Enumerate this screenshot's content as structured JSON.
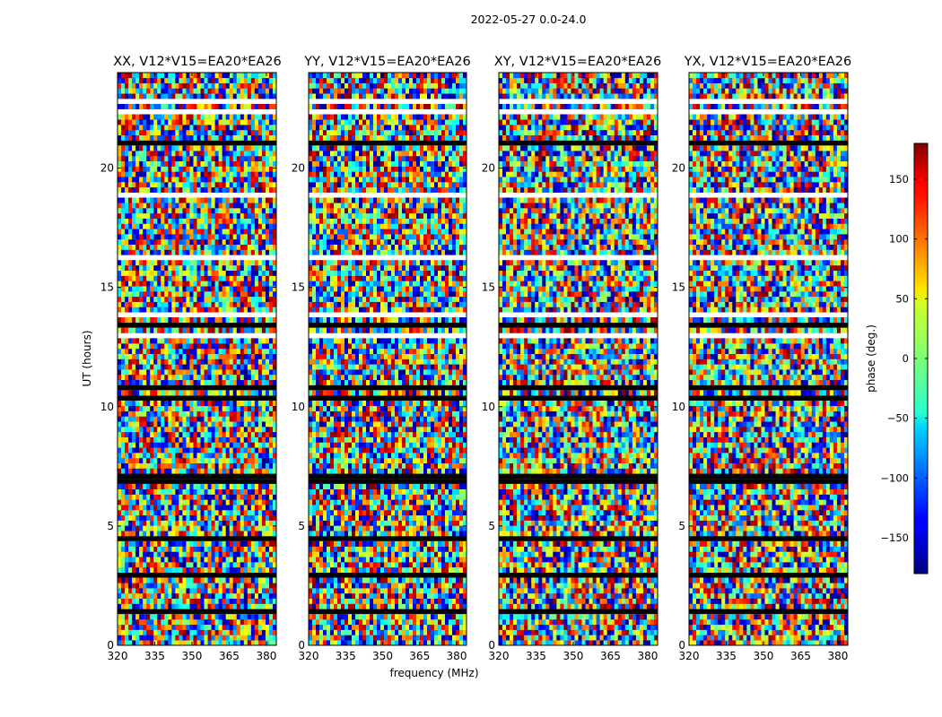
{
  "chart_data": {
    "type": "heatmap",
    "title": "2022-05-27 0.0-24.0",
    "xlabel": "frequency (MHz)",
    "ylabel": "UT (hours)",
    "xlim": [
      320,
      384
    ],
    "ylim": [
      0,
      24
    ],
    "xticks": [
      "320",
      "335",
      "350",
      "365",
      "380"
    ],
    "yticks": [
      "0",
      "5",
      "10",
      "15",
      "20"
    ],
    "panels": [
      {
        "title": "XX, V12*V15=EA20*EA26"
      },
      {
        "title": "YY, V12*V15=EA20*EA26"
      },
      {
        "title": "XY, V12*V15=EA20*EA26"
      },
      {
        "title": "YX, V12*V15=EA20*EA26"
      }
    ],
    "colorbar": {
      "label": "phase (deg.)",
      "range": [
        -180,
        180
      ],
      "ticks": [
        "150",
        "100",
        "50",
        "0",
        "−50",
        "−100",
        "−150"
      ],
      "cmap": "jet"
    },
    "values": "phase noise per (time, frequency) cell; blank rows are flagged/missing data"
  },
  "colors": {
    "background": "#ffffff",
    "axis": "#000000",
    "gap": "#ffffff",
    "flag": "#000000"
  }
}
